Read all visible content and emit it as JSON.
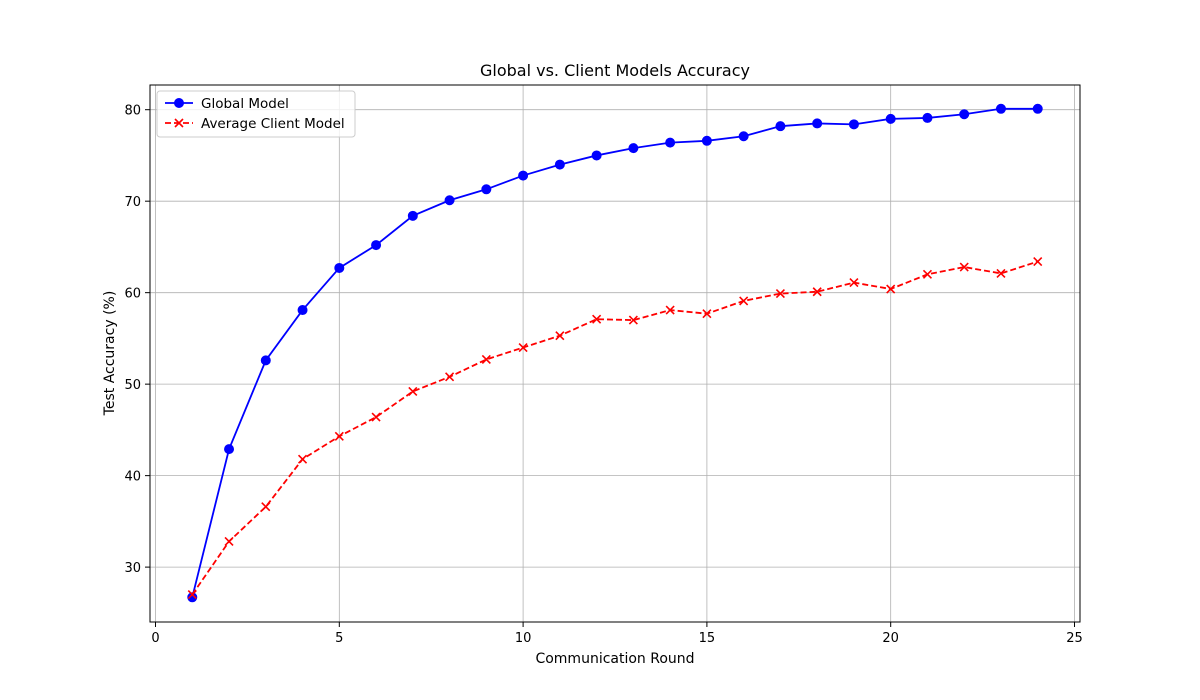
{
  "chart_data": {
    "type": "line",
    "title": "Global vs. Client Models Accuracy",
    "xlabel": "Communication Round",
    "ylabel": "Test Accuracy (%)",
    "xlim": [
      -0.15,
      25.15
    ],
    "ylim": [
      24.0,
      82.7
    ],
    "xticks": [
      0,
      5,
      10,
      15,
      20,
      25
    ],
    "yticks": [
      30,
      40,
      50,
      60,
      70,
      80
    ],
    "grid": true,
    "legend_position": "upper-left",
    "x": [
      1,
      2,
      3,
      4,
      5,
      6,
      7,
      8,
      9,
      10,
      11,
      12,
      13,
      14,
      15,
      16,
      17,
      18,
      19,
      20,
      21,
      22,
      23,
      24
    ],
    "series": [
      {
        "name": "Global Model",
        "color": "#0000ff",
        "line_style": "solid",
        "marker": "circle",
        "values": [
          26.7,
          42.9,
          52.6,
          58.1,
          62.7,
          65.2,
          68.4,
          70.1,
          71.3,
          72.8,
          74.0,
          75.0,
          75.8,
          76.4,
          76.6,
          77.1,
          78.2,
          78.5,
          78.4,
          79.0,
          79.1,
          79.5,
          80.1,
          80.1
        ]
      },
      {
        "name": "Average Client Model",
        "color": "#ff0000",
        "line_style": "dashed",
        "marker": "x",
        "values": [
          27.0,
          32.8,
          36.6,
          41.8,
          44.3,
          46.4,
          49.2,
          50.8,
          52.7,
          54.0,
          55.3,
          57.1,
          57.0,
          58.1,
          57.7,
          59.1,
          59.9,
          60.1,
          61.1,
          60.4,
          62.0,
          62.8,
          62.1,
          63.4
        ]
      }
    ]
  }
}
